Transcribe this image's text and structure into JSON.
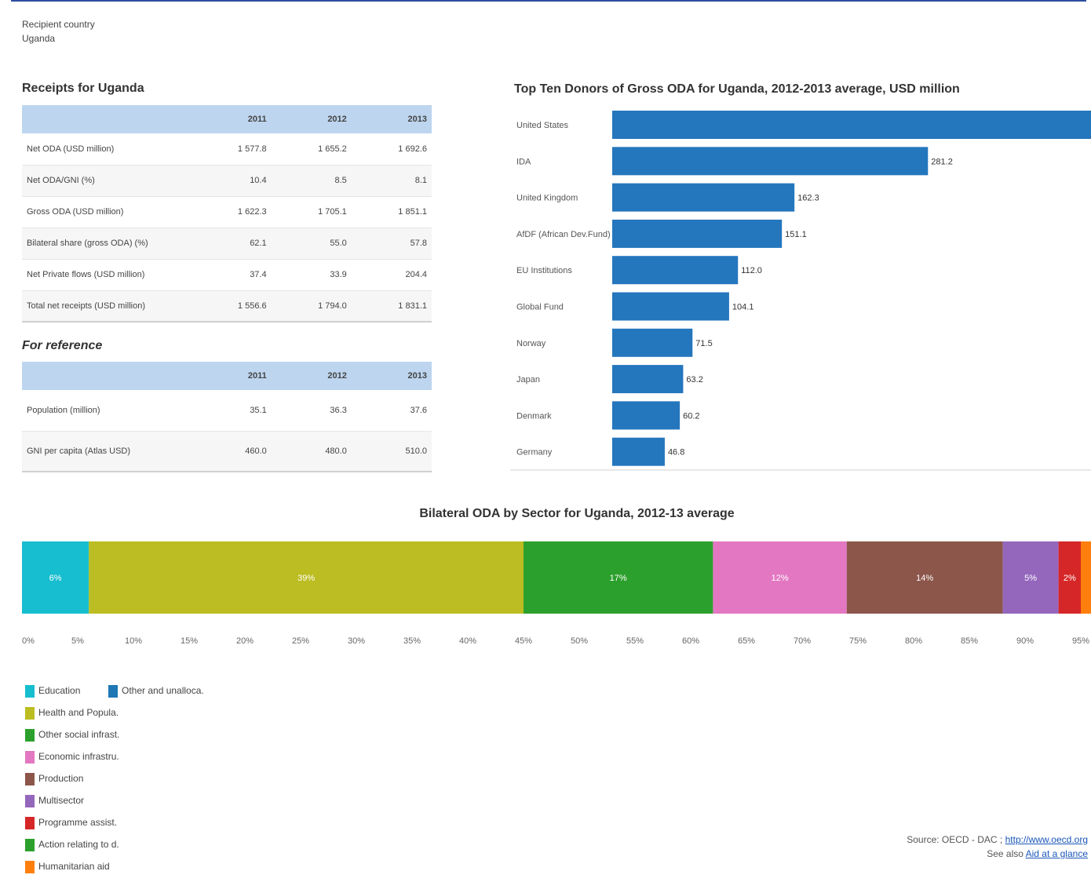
{
  "recipient": {
    "label": "Recipient country",
    "value": "Uganda"
  },
  "receipts": {
    "title": "Receipts for Uganda",
    "columns": [
      "",
      "2011",
      "2012",
      "2013"
    ],
    "rows": [
      {
        "label": "Net ODA (USD million)",
        "values": [
          "1 577.8",
          "1 655.2",
          "1 692.6"
        ]
      },
      {
        "label": "Net ODA/GNI (%)",
        "values": [
          "10.4",
          "8.5",
          "8.1"
        ]
      },
      {
        "label": "Gross ODA (USD million)",
        "values": [
          "1 622.3",
          "1 705.1",
          "1 851.1"
        ]
      },
      {
        "label": "Bilateral share (gross ODA) (%)",
        "values": [
          "62.1",
          "55.0",
          "57.8"
        ]
      },
      {
        "label": "Net Private flows (USD million)",
        "values": [
          "37.4",
          "33.9",
          "204.4"
        ]
      },
      {
        "label": "Total net receipts (USD million)",
        "values": [
          "1 556.6",
          "1 794.0",
          "1 831.1"
        ]
      }
    ]
  },
  "reference": {
    "title": "For reference",
    "columns": [
      "",
      "2011",
      "2012",
      "2013"
    ],
    "rows": [
      {
        "label": "Population (million)",
        "values": [
          "35.1",
          "36.3",
          "37.6"
        ]
      },
      {
        "label": "GNI per capita (Atlas USD)",
        "values": [
          "460.0",
          "480.0",
          "510.0"
        ]
      }
    ]
  },
  "chart_data": [
    {
      "type": "bar",
      "orientation": "horizontal",
      "title": "Top Ten Donors of Gross ODA for Uganda, 2012-2013 average, USD million",
      "categories": [
        "United States",
        "IDA",
        "United Kingdom",
        "AfDF (African Dev.Fund)",
        "EU Institutions",
        "Global Fund",
        "Norway",
        "Japan",
        "Denmark",
        "Germany"
      ],
      "values": [
        445,
        281.2,
        162.3,
        151.1,
        112.0,
        104.1,
        71.5,
        63.2,
        60.2,
        46.8
      ],
      "value_labels": [
        "",
        "281.2",
        "162.3",
        "151.1",
        "112.0",
        "104.1",
        "71.5",
        "63.2",
        "60.2",
        "46.8"
      ],
      "xlim": [
        0,
        425
      ],
      "bar_color": "#2476bd"
    },
    {
      "type": "bar",
      "orientation": "horizontal-stacked-percent",
      "title": "Bilateral ODA by Sector for Uganda, 2012-13 average",
      "series": [
        {
          "name": "Education",
          "value": 6,
          "label": "6%",
          "color": "#17becf"
        },
        {
          "name": "Health and Popula.",
          "value": 39,
          "label": "39%",
          "color": "#bcbd22"
        },
        {
          "name": "Other social infrast.",
          "value": 17,
          "label": "17%",
          "color": "#2ca02c"
        },
        {
          "name": "Economic infrastru.",
          "value": 12,
          "label": "12%",
          "color": "#e377c2"
        },
        {
          "name": "Production",
          "value": 14,
          "label": "14%",
          "color": "#8c564b"
        },
        {
          "name": "Multisector",
          "value": 5,
          "label": "5%",
          "color": "#9467bd"
        },
        {
          "name": "Programme assist.",
          "value": 2,
          "label": "2%",
          "color": "#d62728"
        },
        {
          "name": "Action relating to d.",
          "value": 0,
          "label": "",
          "color": "#2ca02c"
        },
        {
          "name": "Humanitarian aid",
          "value": 1.5,
          "label": "",
          "color": "#ff7f0e"
        },
        {
          "name": "Other and unalloca.",
          "value": 0,
          "label": "",
          "color": "#1f77b4"
        }
      ],
      "x_ticks": [
        "0%",
        "5%",
        "10%",
        "15%",
        "20%",
        "25%",
        "30%",
        "35%",
        "40%",
        "45%",
        "50%",
        "55%",
        "60%",
        "65%",
        "70%",
        "75%",
        "80%",
        "85%",
        "90%",
        "95%"
      ],
      "xlim": [
        0,
        96
      ]
    }
  ],
  "source": {
    "prefix": "Source: OECD - DAC ; ",
    "link": "http://www.oecd.org",
    "see_also": "See also ",
    "see_also_link": "Aid at a glance"
  }
}
